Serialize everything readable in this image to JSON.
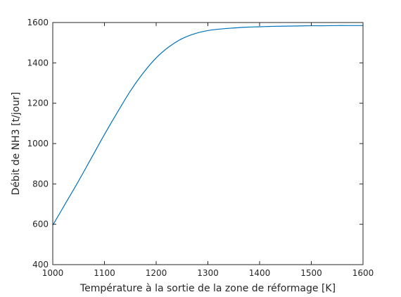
{
  "chart_data": {
    "type": "line",
    "title": "",
    "xlabel": "Température à la sortie de la zone de réformage [K]",
    "ylabel": "Débit de NH3 [t/jour]",
    "xlim": [
      1000,
      1600
    ],
    "ylim": [
      400,
      1600
    ],
    "xticks": [
      1000,
      1100,
      1200,
      1300,
      1400,
      1500,
      1600
    ],
    "yticks": [
      400,
      600,
      800,
      1000,
      1200,
      1400,
      1600
    ],
    "grid": false,
    "box": true,
    "colors": {
      "line": "#0072BD",
      "axes": "#262626"
    },
    "series": [
      {
        "x": [
          1000,
          1025,
          1050,
          1075,
          1100,
          1125,
          1150,
          1175,
          1200,
          1225,
          1250,
          1275,
          1300,
          1325,
          1350,
          1375,
          1400,
          1425,
          1450,
          1475,
          1500,
          1525,
          1550,
          1575,
          1600
        ],
        "y": [
          595,
          705,
          815,
          930,
          1045,
          1155,
          1260,
          1350,
          1425,
          1480,
          1520,
          1545,
          1560,
          1568,
          1573,
          1577,
          1579,
          1581,
          1582,
          1583,
          1584,
          1584,
          1585,
          1585,
          1585
        ]
      }
    ]
  }
}
